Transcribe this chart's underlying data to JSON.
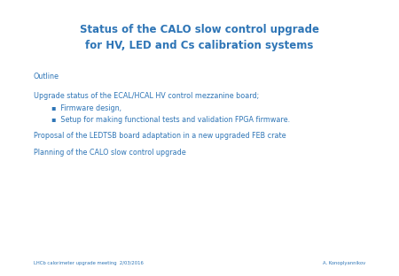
{
  "title_line1": "Status of the CALO slow control upgrade",
  "title_line2": "for HV, LED and Cs calibration systems",
  "title_color": "#2E75B6",
  "title_fontsize": 8.5,
  "body_color": "#2E75B6",
  "body_fontsize": 5.8,
  "bullet_fontsize": 5.8,
  "footer_fontsize": 3.8,
  "outline_label": "Outline",
  "paragraph1": "Upgrade status of the ECAL/HCAL HV control mezzanine board;",
  "bullets": [
    "Firmware design,",
    "Setup for making functional tests and validation FPGA firmware."
  ],
  "paragraph2": "Proposal of the LEDTSB board adaptation in a new upgraded FEB crate",
  "paragraph3": "Planning of the CALO slow control upgrade",
  "footer_left": "LHCb calorimeter upgrade meeting  2/03/2016",
  "footer_right": "A. Konoplyannikov",
  "background_color": "#ffffff"
}
